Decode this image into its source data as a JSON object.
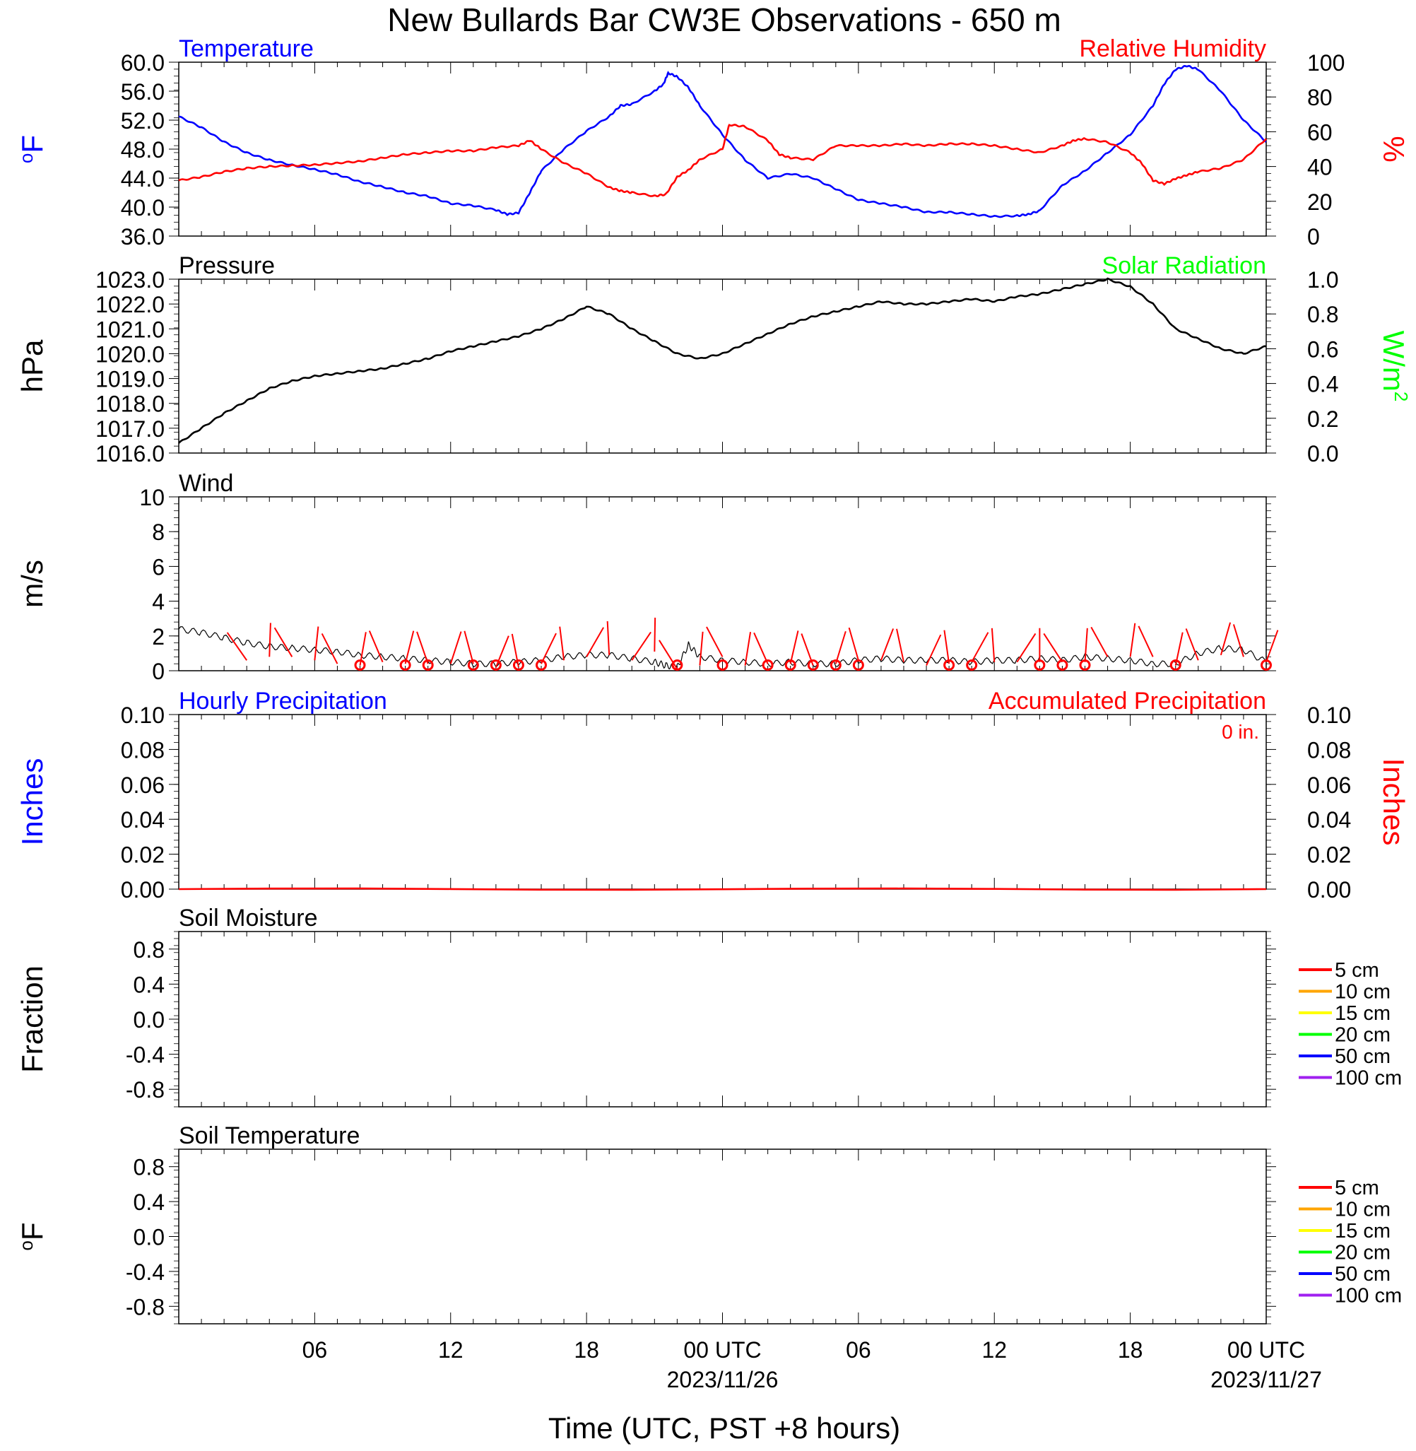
{
  "title": "New Bullards Bar CW3E Observations - 650 m",
  "x_axis": {
    "label": "Time (UTC, PST +8 hours)",
    "ticks": [
      {
        "hour": 5,
        "label": "06"
      },
      {
        "hour": 11,
        "label": "12"
      },
      {
        "hour": 17,
        "label": "18"
      },
      {
        "hour": 23,
        "label": "00 UTC",
        "date": "2023/11/26"
      },
      {
        "hour": 29,
        "label": "06"
      },
      {
        "hour": 35,
        "label": "12"
      },
      {
        "hour": 41,
        "label": "18"
      },
      {
        "hour": 47,
        "label": "00 UTC",
        "date": "2023/11/27"
      }
    ]
  },
  "legend_depths": [
    {
      "label": "5 cm",
      "color": "#ff0000"
    },
    {
      "label": "10 cm",
      "color": "#ffa500"
    },
    {
      "label": "15 cm",
      "color": "#ffff00"
    },
    {
      "label": "20 cm",
      "color": "#00ff00"
    },
    {
      "label": "50 cm",
      "color": "#0000ff"
    },
    {
      "label": "100 cm",
      "color": "#a020f0"
    }
  ],
  "chart_data": [
    {
      "type": "line",
      "panel": "temperature_humidity",
      "left_title": "Temperature",
      "left_title_color": "#0000ff",
      "right_title": "Relative Humidity",
      "right_title_color": "#ff0000",
      "ylabel": "oF",
      "ylabel_color": "#0000ff",
      "y2label": "%",
      "y2label_color": "#ff0000",
      "ylim": [
        36,
        60
      ],
      "yticks": [
        "36.0",
        "40.0",
        "44.0",
        "48.0",
        "52.0",
        "56.0",
        "60.0"
      ],
      "y2lim": [
        0,
        100
      ],
      "y2ticks": [
        "0",
        "20",
        "40",
        "60",
        "80",
        "100"
      ],
      "xlim": [
        0,
        48
      ],
      "series": [
        {
          "name": "Temperature",
          "color": "#0000ff",
          "axis": "left",
          "x": [
            0,
            1,
            2,
            3,
            4,
            5,
            6,
            7,
            8,
            9,
            10,
            11,
            12,
            13,
            14,
            14.5,
            15,
            15.5,
            16,
            17,
            18,
            19,
            19.5,
            20,
            21,
            21.4,
            21.6,
            22,
            22.5,
            23,
            24,
            25,
            26,
            27,
            28,
            29,
            30,
            31,
            32,
            33,
            34,
            35,
            36,
            37,
            37.5,
            38,
            39,
            40,
            41,
            42,
            43,
            43.5,
            44,
            44.5,
            45,
            46,
            47,
            48
          ],
          "y": [
            52.5,
            51,
            49,
            47.5,
            46.5,
            45.8,
            45.2,
            44.5,
            43.5,
            42.8,
            42,
            41.5,
            40.5,
            40.2,
            39.6,
            39,
            39.2,
            42,
            45,
            48,
            50.5,
            52.5,
            54,
            54.2,
            56,
            57,
            58.5,
            58,
            56.5,
            54,
            50,
            46.5,
            44,
            44.6,
            44,
            42.5,
            41,
            40.5,
            40,
            39.3,
            39.3,
            39,
            38.7,
            38.8,
            39,
            39.5,
            43,
            45,
            47.5,
            50,
            54,
            57,
            59,
            59.5,
            59,
            56,
            52,
            49
          ]
        },
        {
          "name": "Relative Humidity",
          "color": "#ff0000",
          "axis": "right",
          "x": [
            0,
            1,
            2,
            3,
            4,
            5,
            6,
            7,
            8,
            9,
            10,
            11,
            12,
            13,
            14,
            15,
            15.5,
            16,
            17,
            18,
            19,
            19.5,
            20,
            21,
            21.5,
            22,
            22.5,
            23,
            24,
            24.3,
            25,
            26,
            26.5,
            27,
            28,
            29,
            30,
            31,
            32,
            33,
            34,
            35,
            36,
            37,
            38,
            39,
            39.5,
            40,
            41,
            42,
            42.5,
            43,
            43.5,
            44,
            44.5,
            45,
            46,
            47,
            48
          ],
          "y": [
            32,
            34,
            37,
            39,
            40,
            40.5,
            41,
            42,
            43,
            45,
            47,
            48,
            49,
            49,
            51,
            52,
            55,
            50,
            42,
            36,
            28,
            26,
            25,
            23,
            24,
            34,
            38,
            44,
            50,
            64,
            63,
            55,
            47,
            45,
            44,
            52,
            52,
            52,
            53,
            52,
            53,
            53,
            52,
            50,
            48,
            52,
            55,
            56,
            54,
            48,
            42,
            32,
            30,
            33,
            35,
            37,
            39,
            44,
            56
          ]
        }
      ]
    },
    {
      "type": "line",
      "panel": "pressure_solar",
      "left_title": "Pressure",
      "left_title_color": "#000000",
      "right_title": "Solar Radiation",
      "right_title_color": "#00ff00",
      "ylabel": "hPa",
      "ylabel_color": "#000000",
      "y2label": "W/m2",
      "y2label_color": "#00ff00",
      "ylim": [
        1016,
        1023
      ],
      "yticks": [
        "1016.0",
        "1017.0",
        "1018.0",
        "1019.0",
        "1020.0",
        "1021.0",
        "1022.0",
        "1023.0"
      ],
      "y2lim": [
        0,
        1
      ],
      "y2ticks": [
        "0.0",
        "0.2",
        "0.4",
        "0.6",
        "0.8",
        "1.0"
      ],
      "xlim": [
        0,
        48
      ],
      "series": [
        {
          "name": "Pressure",
          "color": "#000000",
          "axis": "left",
          "x": [
            0,
            1,
            2,
            3,
            4,
            5,
            6,
            7,
            8,
            9,
            10,
            11,
            12,
            13,
            14,
            15,
            16,
            17,
            18,
            19,
            20,
            21,
            22,
            23,
            24,
            25,
            26,
            27,
            28,
            29,
            30,
            31,
            32,
            33,
            34,
            35,
            36,
            37,
            38,
            39,
            40,
            41,
            42,
            43,
            44,
            45,
            46,
            47,
            48
          ],
          "y": [
            1016.4,
            1017.0,
            1017.6,
            1018.1,
            1018.6,
            1018.9,
            1019.1,
            1019.2,
            1019.3,
            1019.4,
            1019.6,
            1019.8,
            1020.1,
            1020.3,
            1020.5,
            1020.7,
            1021.0,
            1021.4,
            1021.9,
            1021.6,
            1021.0,
            1020.5,
            1020.0,
            1019.8,
            1020.0,
            1020.4,
            1020.8,
            1021.2,
            1021.5,
            1021.7,
            1021.9,
            1022.1,
            1022.0,
            1022.0,
            1022.1,
            1022.2,
            1022.1,
            1022.3,
            1022.4,
            1022.6,
            1022.8,
            1023.0,
            1022.7,
            1022.0,
            1021.0,
            1020.6,
            1020.2,
            1020.0,
            1020.3
          ]
        }
      ]
    },
    {
      "type": "line",
      "panel": "wind",
      "left_title": "Wind",
      "ylabel": "m/s",
      "ylim": [
        0,
        10
      ],
      "yticks": [
        "0",
        "2",
        "4",
        "6",
        "8",
        "10"
      ],
      "xlim": [
        0,
        48
      ],
      "series": [
        {
          "name": "Wind",
          "color": "#000000",
          "axis": "left",
          "x": [
            0,
            1,
            2,
            3,
            4,
            5,
            6,
            7,
            8,
            9,
            10,
            11,
            12,
            13,
            14,
            15,
            16,
            17,
            18,
            19,
            20,
            21,
            21.5,
            22,
            22.5,
            23,
            24,
            25,
            26,
            27,
            28,
            29,
            30,
            31,
            32,
            33,
            34,
            35,
            36,
            37,
            38,
            39,
            40,
            41,
            42,
            43,
            44,
            45,
            46,
            47,
            48
          ],
          "y": [
            2.4,
            2.2,
            1.9,
            1.6,
            1.4,
            1.3,
            1.2,
            1.1,
            0.9,
            0.8,
            0.7,
            0.6,
            0.5,
            0.4,
            0.4,
            0.5,
            0.6,
            0.8,
            0.9,
            0.9,
            0.7,
            0.5,
            0.3,
            0.2,
            1.5,
            0.8,
            0.6,
            0.5,
            0.4,
            0.5,
            0.4,
            0.4,
            0.6,
            0.7,
            0.6,
            0.6,
            0.6,
            0.5,
            0.6,
            0.6,
            0.7,
            0.6,
            0.8,
            0.7,
            0.6,
            0.4,
            0.4,
            1.0,
            1.3,
            1.2,
            0.5
          ]
        },
        {
          "name": "Wind barbs",
          "color": "#ff0000",
          "type": "barbs",
          "x": [
            2,
            3,
            4,
            5,
            6,
            7,
            8,
            9,
            10,
            11,
            12,
            13,
            14,
            15,
            16,
            17,
            18,
            19,
            20,
            21,
            22,
            23,
            24,
            25,
            26,
            27,
            28,
            29,
            30,
            31,
            32,
            33,
            34,
            35,
            36,
            37,
            38,
            39,
            40,
            41,
            42,
            43,
            44,
            45,
            46,
            47
          ],
          "y": [
            0.6,
            0.8,
            0.8,
            0.6,
            0.4,
            0.3,
            0.5,
            0.4,
            0.4,
            0.4,
            0.4,
            0.2,
            0.2,
            0.4,
            0.6,
            0.8,
            0.9,
            0.6,
            1.1,
            0.1,
            0.3,
            0.8,
            0.3,
            0.4,
            0.4,
            0.3,
            0.4,
            0.6,
            0.6,
            0.5,
            0.3,
            0.4,
            0.5,
            0.5,
            0.5,
            0.5,
            0.5,
            0.5,
            0.8,
            0.8,
            0.8,
            0.3,
            0.6,
            0.9,
            0.8,
            0.5
          ],
          "calm": [
            7,
            9,
            10,
            12,
            13,
            14,
            15,
            21,
            23,
            25,
            26,
            27,
            28,
            29,
            33,
            34,
            37,
            38,
            39,
            43,
            47
          ]
        }
      ]
    },
    {
      "type": "line",
      "panel": "precipitation",
      "left_title": "Hourly Precipitation",
      "left_title_color": "#0000ff",
      "right_title": "Accumulated Precipitation",
      "right_title_color": "#ff0000",
      "annotation": "0 in.",
      "ylabel": "Inches",
      "ylabel_color": "#0000ff",
      "y2label": "Inches",
      "y2label_color": "#ff0000",
      "ylim": [
        0,
        0.1
      ],
      "yticks": [
        "0.00",
        "0.02",
        "0.04",
        "0.06",
        "0.08",
        "0.10"
      ],
      "y2ticks": [
        "0.00",
        "0.02",
        "0.04",
        "0.06",
        "0.08",
        "0.10"
      ],
      "xlim": [
        0,
        48
      ],
      "series": [
        {
          "name": "Accumulated Precipitation",
          "color": "#ff0000",
          "x": [
            0,
            48
          ],
          "y": [
            0,
            0
          ]
        }
      ]
    },
    {
      "type": "line",
      "panel": "soil_moisture",
      "left_title": "Soil Moisture",
      "ylabel": "Fraction",
      "ylim": [
        -1,
        1
      ],
      "yticks": [
        "-0.8",
        "-0.4",
        "0.0",
        "0.4",
        "0.8"
      ],
      "ytick_values": [
        -0.8,
        -0.4,
        0,
        0.4,
        0.8
      ],
      "xlim": [
        0,
        48
      ],
      "series": []
    },
    {
      "type": "line",
      "panel": "soil_temperature",
      "left_title": "Soil Temperature",
      "ylabel": "oF",
      "ylim": [
        -1,
        1
      ],
      "yticks": [
        "-0.8",
        "-0.4",
        "0.0",
        "0.4",
        "0.8"
      ],
      "ytick_values": [
        -0.8,
        -0.4,
        0,
        0.4,
        0.8
      ],
      "xlim": [
        0,
        48
      ],
      "series": []
    }
  ]
}
